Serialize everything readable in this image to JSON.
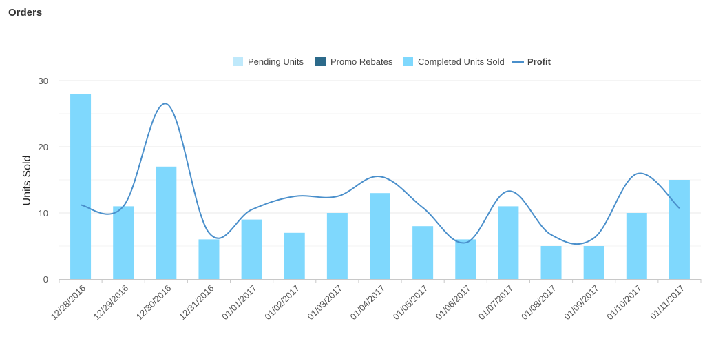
{
  "header": {
    "title": "Orders"
  },
  "colors": {
    "pending": "#bfe9fb",
    "promo": "#2c6a8a",
    "completed": "#7fd8fd",
    "profit": "#4a8fcb"
  },
  "chart_data": {
    "type": "bar",
    "categories": [
      "12/28/2016",
      "12/29/2016",
      "12/30/2016",
      "12/31/2016",
      "01/01/2017",
      "01/02/2017",
      "01/03/2017",
      "01/04/2017",
      "01/05/2017",
      "01/06/2017",
      "01/07/2017",
      "01/08/2017",
      "01/09/2017",
      "01/10/2017",
      "01/11/2017"
    ],
    "series": [
      {
        "name": "Pending Units",
        "type": "bar",
        "values": [
          0,
          0,
          0,
          0,
          0,
          0,
          0,
          0,
          0,
          0,
          0,
          0,
          0,
          0,
          0
        ]
      },
      {
        "name": "Promo Rebates",
        "type": "bar",
        "values": [
          0,
          0,
          0,
          0,
          0,
          0,
          0,
          0,
          0,
          0,
          0,
          0,
          0,
          0,
          0
        ]
      },
      {
        "name": "Completed Units Sold",
        "type": "bar",
        "values": [
          28,
          11,
          17,
          6,
          9,
          7,
          10,
          13,
          8,
          6,
          11,
          5,
          5,
          10,
          15
        ]
      },
      {
        "name": "Profit",
        "type": "line",
        "values": [
          11.2,
          11.0,
          26.5,
          7.0,
          10.5,
          12.5,
          12.5,
          15.5,
          10.8,
          5.5,
          13.3,
          6.7,
          6.2,
          15.9,
          10.7
        ]
      }
    ],
    "ylabel": "Units Sold",
    "ylim": [
      0,
      30
    ],
    "yticks": [
      0,
      10,
      20,
      30
    ],
    "legend_position": "top"
  }
}
